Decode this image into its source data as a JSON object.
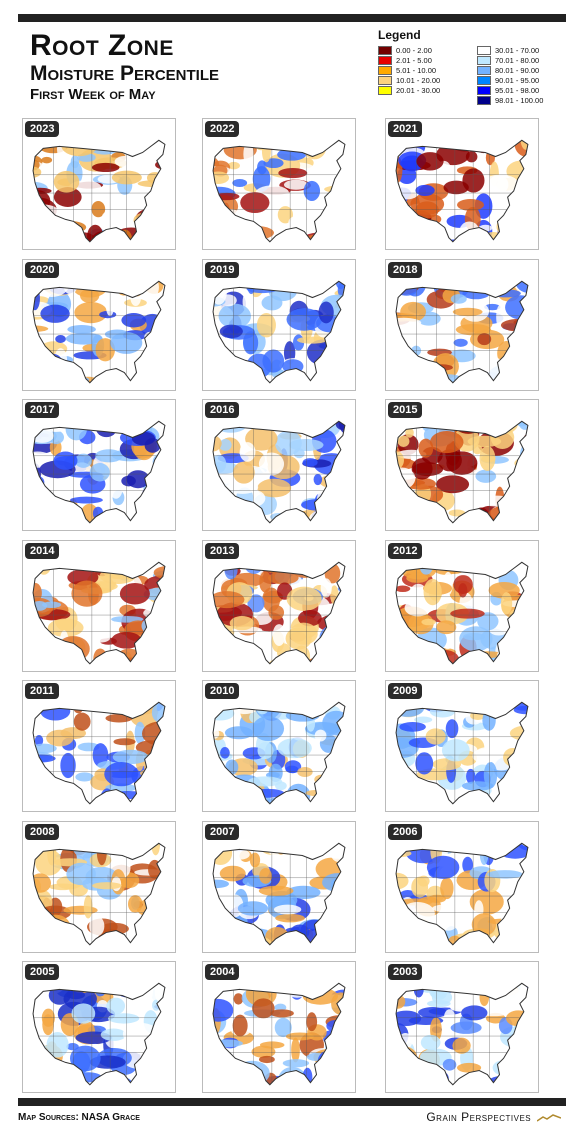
{
  "title": {
    "line1": "Root Zone",
    "line2": "Moisture Percentile",
    "line3": "First Week of May"
  },
  "legend": {
    "title": "Legend",
    "items": [
      {
        "label": "0.00 - 2.00",
        "color": "#730000"
      },
      {
        "label": "30.01 - 70.00",
        "color": "#ffffff"
      },
      {
        "label": "2.01 - 5.00",
        "color": "#e60000"
      },
      {
        "label": "70.01 - 80.00",
        "color": "#bfe8ff"
      },
      {
        "label": "5.01 - 10.00",
        "color": "#ffaa00"
      },
      {
        "label": "80.01 - 90.00",
        "color": "#73b2ff"
      },
      {
        "label": "10.01 - 20.00",
        "color": "#fcd37f"
      },
      {
        "label": "90.01 - 95.00",
        "color": "#0084ff"
      },
      {
        "label": "20.01 - 30.00",
        "color": "#ffff00"
      },
      {
        "label": "95.01 - 98.00",
        "color": "#0000ff"
      },
      {
        "label": "",
        "color": ""
      },
      {
        "label": "98.01 - 100.00",
        "color": "#00008b"
      }
    ]
  },
  "maps": [
    {
      "year": "2023",
      "palette": [
        "#8b0000",
        "#d97a1a",
        "#f6c56b",
        "#ffffff",
        "#8fc6ff"
      ]
    },
    {
      "year": "2022",
      "palette": [
        "#a31212",
        "#e0742b",
        "#fcd37f",
        "#ffffff",
        "#3a6fff"
      ]
    },
    {
      "year": "2021",
      "palette": [
        "#8b0000",
        "#d95d1a",
        "#fcd37f",
        "#ffffff",
        "#1e3cff"
      ]
    },
    {
      "year": "2020",
      "palette": [
        "#f4a742",
        "#fcd37f",
        "#ffffff",
        "#7fb8ff",
        "#2340e8"
      ]
    },
    {
      "year": "2019",
      "palette": [
        "#fcd37f",
        "#ffffff",
        "#8fc6ff",
        "#3d6fff",
        "#1f2fc8"
      ]
    },
    {
      "year": "2018",
      "palette": [
        "#b53b1a",
        "#f4a742",
        "#ffffff",
        "#8fc6ff",
        "#3d6fff"
      ]
    },
    {
      "year": "2017",
      "palette": [
        "#f4a742",
        "#ffffff",
        "#8fc6ff",
        "#2e52ff",
        "#1a1fb0"
      ]
    },
    {
      "year": "2016",
      "palette": [
        "#f4c06b",
        "#ffffff",
        "#a6d3ff",
        "#2e52ff",
        "#1a1fb0"
      ]
    },
    {
      "year": "2015",
      "palette": [
        "#8b0000",
        "#d95d1a",
        "#fcd37f",
        "#ffffff",
        "#8fc6ff"
      ]
    },
    {
      "year": "2014",
      "palette": [
        "#a31212",
        "#e0742b",
        "#fcd37f",
        "#ffffff",
        "#8fc6ff"
      ]
    },
    {
      "year": "2013",
      "palette": [
        "#a31212",
        "#e0742b",
        "#fcd37f",
        "#ffffff",
        "#5a8cff"
      ]
    },
    {
      "year": "2012",
      "palette": [
        "#c02a1a",
        "#f4a742",
        "#fcd37f",
        "#ffffff",
        "#8fc6ff"
      ]
    },
    {
      "year": "2011",
      "palette": [
        "#c0501a",
        "#f4c06b",
        "#ffffff",
        "#8fc6ff",
        "#2e52ff"
      ]
    },
    {
      "year": "2010",
      "palette": [
        "#f4c06b",
        "#ffffff",
        "#bfe8ff",
        "#73b2ff",
        "#2e52ff"
      ]
    },
    {
      "year": "2009",
      "palette": [
        "#fcd37f",
        "#ffffff",
        "#bfe8ff",
        "#73b2ff",
        "#2e52ff"
      ]
    },
    {
      "year": "2008",
      "palette": [
        "#c0501a",
        "#f4a742",
        "#fcd37f",
        "#ffffff",
        "#8fc6ff"
      ]
    },
    {
      "year": "2007",
      "palette": [
        "#f4a742",
        "#fcd37f",
        "#ffffff",
        "#73b2ff",
        "#2340e8"
      ]
    },
    {
      "year": "2006",
      "palette": [
        "#f4a742",
        "#fcd37f",
        "#ffffff",
        "#8fc6ff",
        "#2e52ff"
      ]
    },
    {
      "year": "2005",
      "palette": [
        "#f4a742",
        "#ffffff",
        "#bfe8ff",
        "#3d6fff",
        "#1a2fc8"
      ]
    },
    {
      "year": "2004",
      "palette": [
        "#c0501a",
        "#f4a742",
        "#ffffff",
        "#8fc6ff",
        "#2e52ff"
      ]
    },
    {
      "year": "2003",
      "palette": [
        "#f4a742",
        "#ffffff",
        "#bfe8ff",
        "#5a8cff",
        "#2340e8"
      ]
    }
  ],
  "footer": {
    "source": "Map Sources: NASA Grace",
    "brand": "Grain Perspectives"
  }
}
